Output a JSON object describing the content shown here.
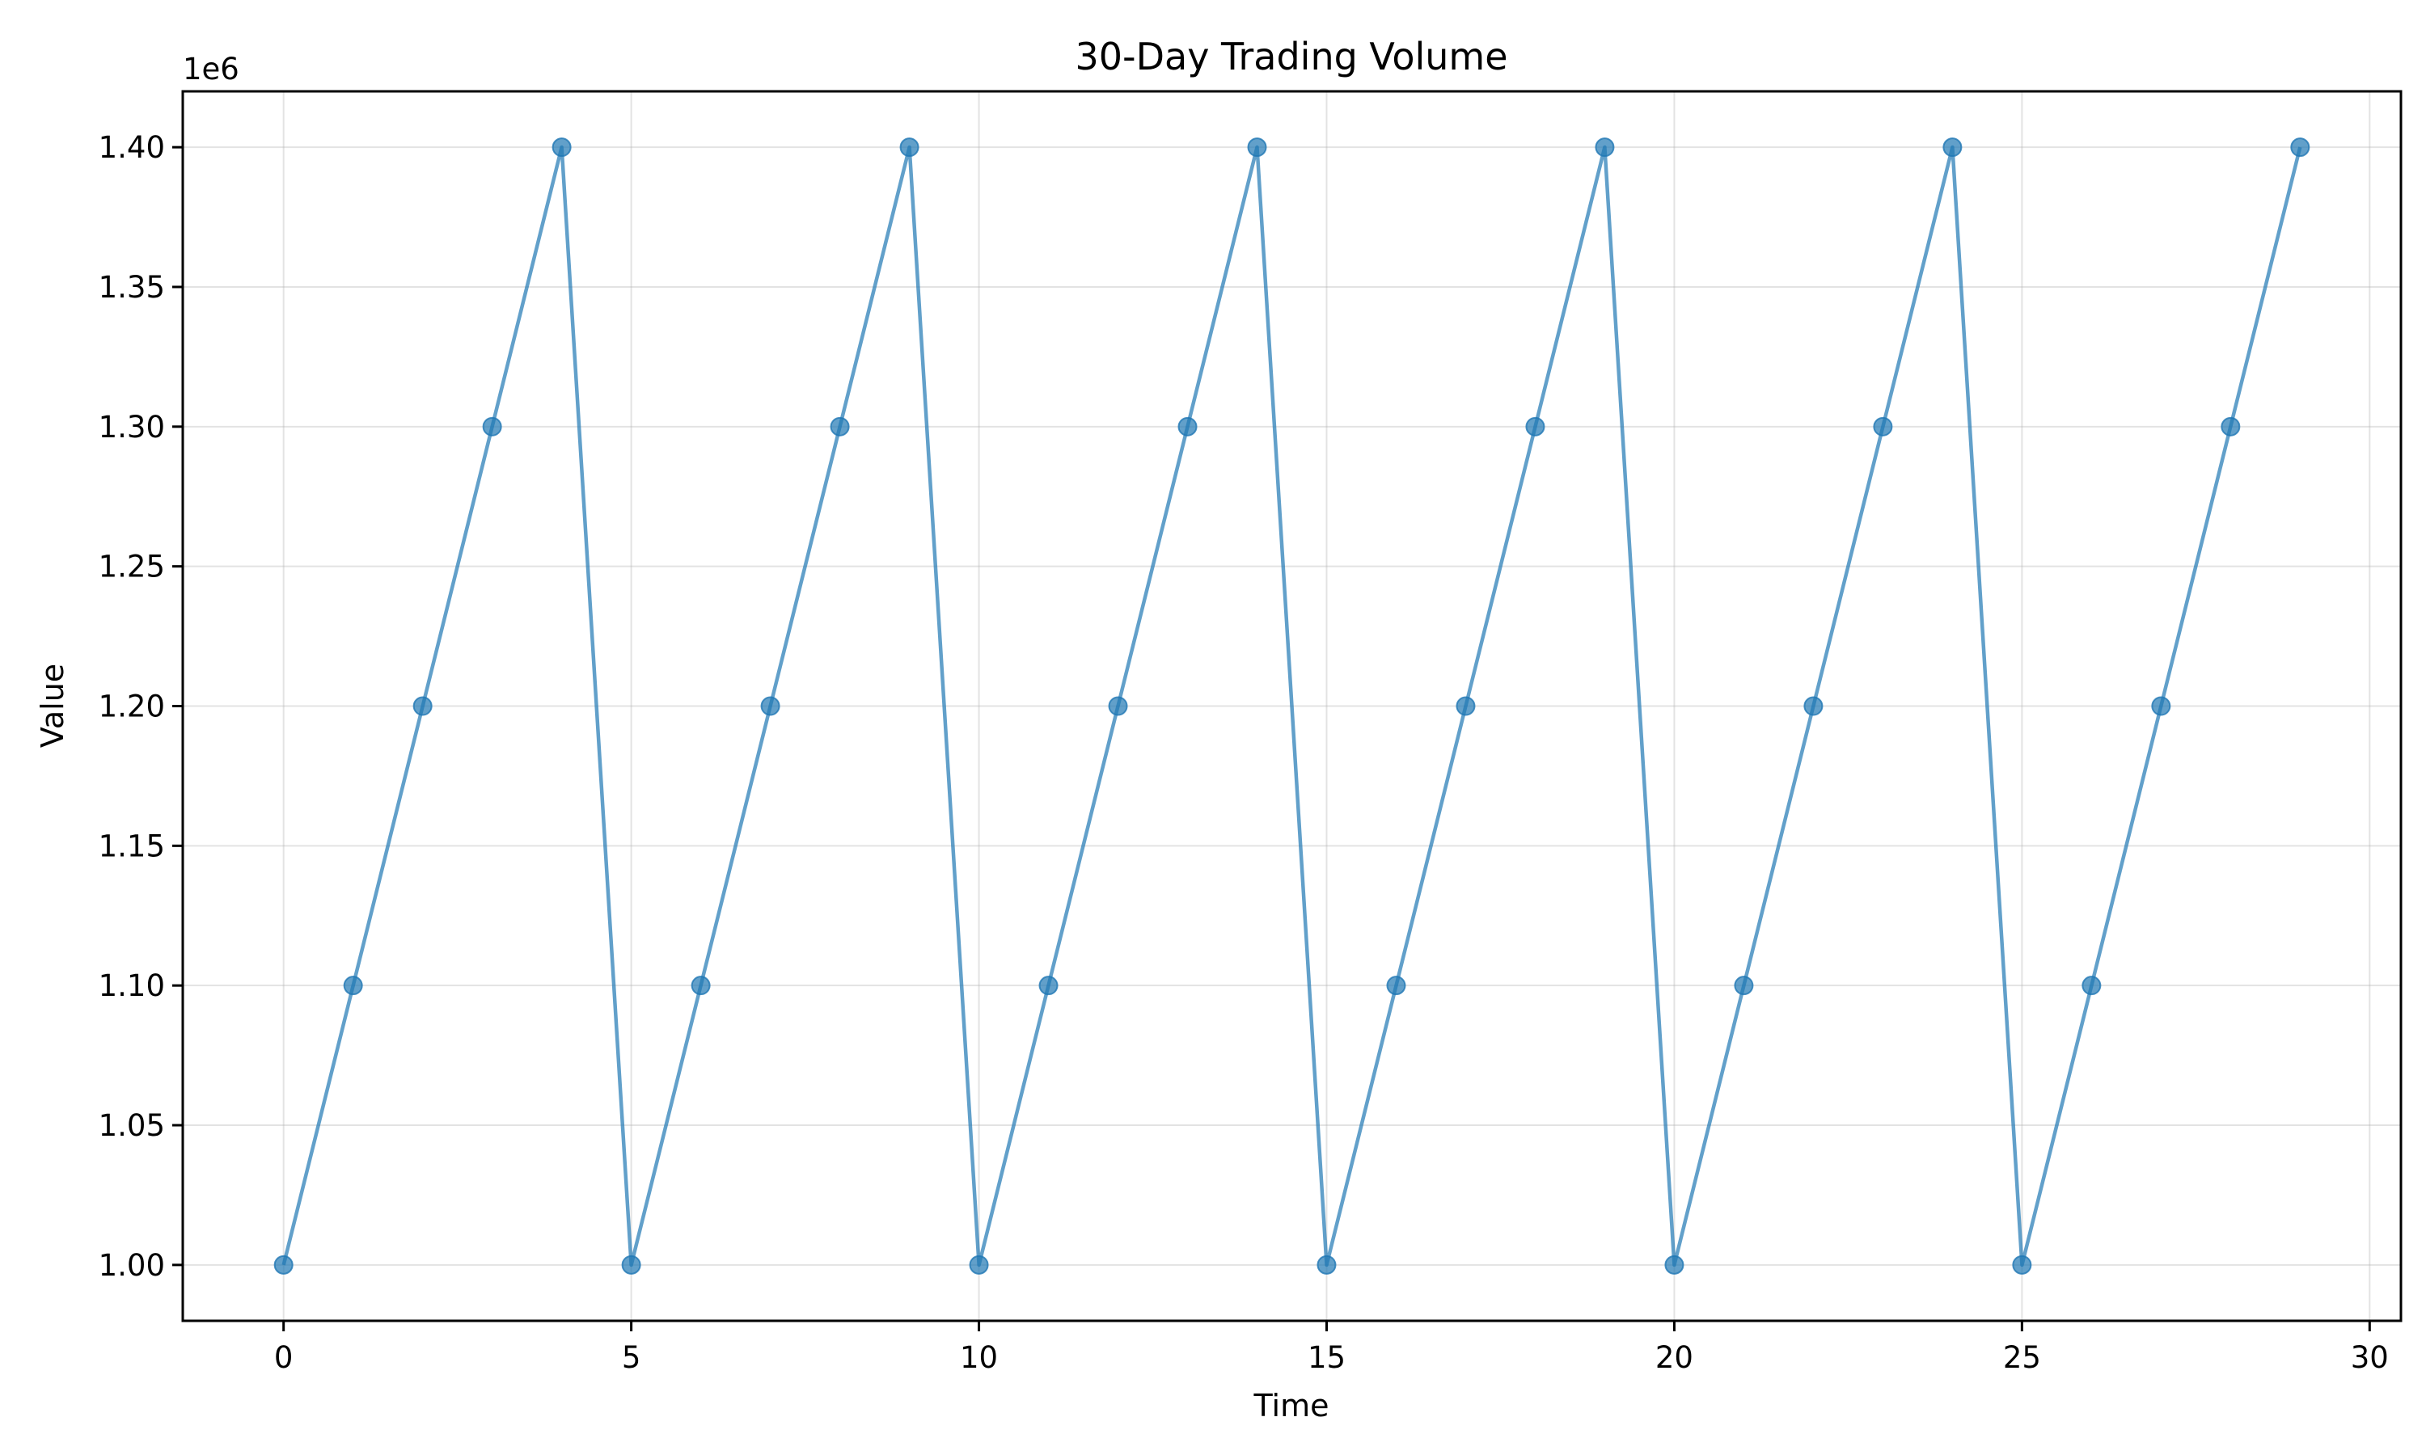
{
  "chart_data": {
    "type": "line",
    "title": "30-Day Trading Volume",
    "xlabel": "Time",
    "ylabel": "Value",
    "y_offset_label": "1e6",
    "xlim": [
      -1.45,
      30.45
    ],
    "ylim": [
      980000,
      1420000
    ],
    "x_ticks": [
      0,
      5,
      10,
      15,
      20,
      25,
      30
    ],
    "x_tick_labels": [
      "0",
      "5",
      "10",
      "15",
      "20",
      "25",
      "30"
    ],
    "y_ticks": [
      1000000,
      1050000,
      1100000,
      1150000,
      1200000,
      1250000,
      1300000,
      1350000,
      1400000
    ],
    "y_tick_labels": [
      "1.00",
      "1.05",
      "1.10",
      "1.15",
      "1.20",
      "1.25",
      "1.30",
      "1.35",
      "1.40"
    ],
    "grid": true,
    "legend": false,
    "series": [
      {
        "color": "#1f77b4",
        "marker": "circle",
        "x": [
          0,
          1,
          2,
          3,
          4,
          5,
          6,
          7,
          8,
          9,
          10,
          11,
          12,
          13,
          14,
          15,
          16,
          17,
          18,
          19,
          20,
          21,
          22,
          23,
          24,
          25,
          26,
          27,
          28,
          29
        ],
        "y": [
          1000000,
          1100000,
          1200000,
          1300000,
          1400000,
          1000000,
          1100000,
          1200000,
          1300000,
          1400000,
          1000000,
          1100000,
          1200000,
          1300000,
          1400000,
          1000000,
          1100000,
          1200000,
          1300000,
          1400000,
          1000000,
          1100000,
          1200000,
          1300000,
          1400000,
          1000000,
          1100000,
          1200000,
          1300000,
          1400000
        ]
      }
    ]
  }
}
